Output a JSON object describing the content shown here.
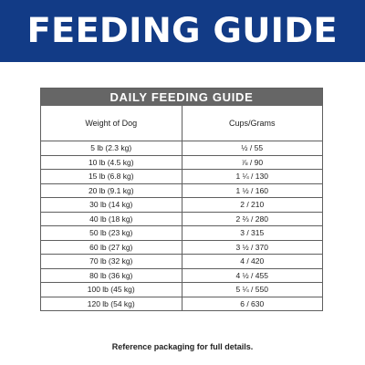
{
  "banner": {
    "title": "FEEDING GUIDE",
    "background_color": "#123b86",
    "text_color": "#ffffff"
  },
  "guide": {
    "title": "DAILY FEEDING GUIDE",
    "header_color": "#666666",
    "columns": [
      "Weight of Dog",
      "Cups/Grams"
    ],
    "rows": [
      {
        "weight": "5 lb (2.3 kg)",
        "amount": "½  /  55"
      },
      {
        "weight": "10 lb (4.5 kg)",
        "amount": "⅞  /  90"
      },
      {
        "weight": "15 lb (6.8 kg)",
        "amount": "1 ¼  /  130"
      },
      {
        "weight": "20 lb (9.1 kg)",
        "amount": "1 ½  /  160"
      },
      {
        "weight": "30 lb (14 kg)",
        "amount": "2  /  210"
      },
      {
        "weight": "40 lb (18 kg)",
        "amount": "2 ⅔  /  280"
      },
      {
        "weight": "50 lb (23 kg)",
        "amount": "3  /  315"
      },
      {
        "weight": "60 lb (27 kg)",
        "amount": "3 ½  /  370"
      },
      {
        "weight": "70 lb (32 kg)",
        "amount": "4  /  420"
      },
      {
        "weight": "80 lb (36 kg)",
        "amount": "4 ½  /  455"
      },
      {
        "weight": "100 lb (45 kg)",
        "amount": "5 ¼  /  550"
      },
      {
        "weight": "120 lb (54 kg)",
        "amount": "6  /  630"
      }
    ]
  },
  "footnote": "Reference packaging for full details."
}
